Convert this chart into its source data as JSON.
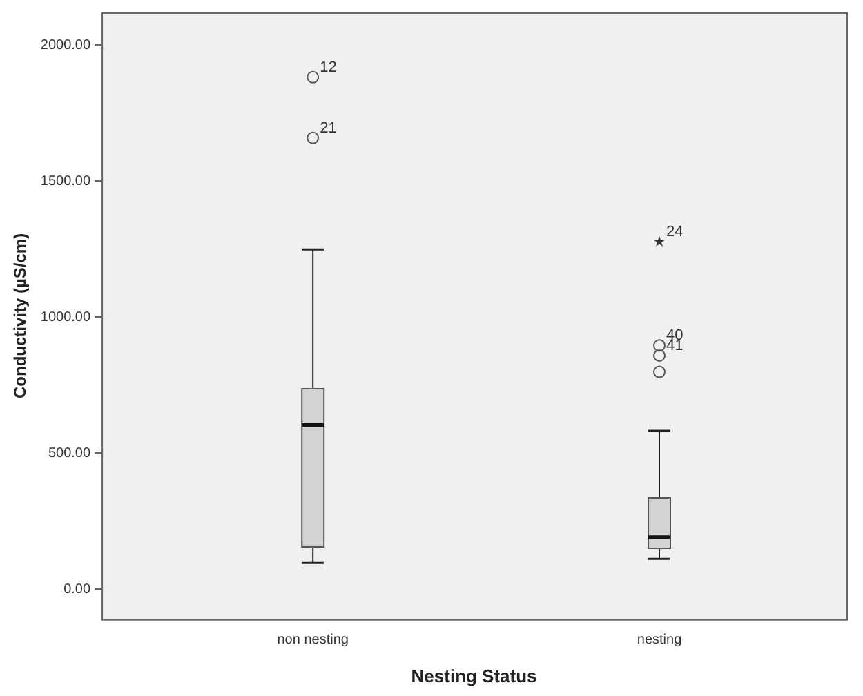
{
  "chart_data": {
    "type": "box",
    "xlabel": "Nesting Status",
    "ylabel": "Conductivity (µS/cm)",
    "categories": [
      "non nesting",
      "nesting"
    ],
    "ylim": [
      -110,
      2120
    ],
    "yticks": [
      {
        "value": 0,
        "label": "0.00"
      },
      {
        "value": 500,
        "label": "500.00"
      },
      {
        "value": 1000,
        "label": "1000.00"
      },
      {
        "value": 1500,
        "label": "1500.00"
      },
      {
        "value": 2000,
        "label": "2000.00"
      }
    ],
    "grid": false,
    "legend": false,
    "series": [
      {
        "color": "#d3d3d3",
        "boxes": [
          {
            "low": 97,
            "q1": 156,
            "median": 604,
            "q3": 737,
            "high": 1249
          },
          {
            "low": 112,
            "q1": 151,
            "median": 192,
            "q3": 336,
            "high": 582
          }
        ]
      },
      {
        "type": "scatter",
        "marker": "circle",
        "color": "#555555",
        "x": [
          "non nesting",
          "non nesting",
          "nesting",
          "nesting",
          "nesting"
        ],
        "values": [
          1882,
          1659,
          896,
          859,
          799
        ]
      },
      {
        "type": "scatter",
        "marker": "star",
        "color": "#333333",
        "x": [
          "nesting"
        ],
        "values": [
          1277
        ]
      }
    ],
    "annotations": [
      {
        "text": "12",
        "x": "non nesting",
        "y": 1882
      },
      {
        "text": "21",
        "x": "non nesting",
        "y": 1659
      },
      {
        "text": "24",
        "x": "nesting",
        "y": 1277
      },
      {
        "text": "40",
        "x": "nesting",
        "y": 896
      },
      {
        "text": "41",
        "x": "nesting",
        "y": 859
      }
    ]
  }
}
